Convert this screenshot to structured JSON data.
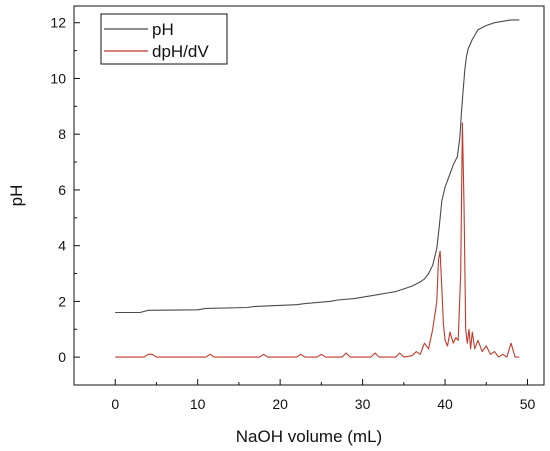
{
  "chart_data": {
    "type": "line",
    "xlabel": "NaOH volume (mL)",
    "ylabel": "pH",
    "xlim": [
      -5,
      52
    ],
    "ylim": [
      -1,
      12.6
    ],
    "x_ticks": [
      0,
      10,
      20,
      30,
      40,
      50
    ],
    "y_ticks": [
      0,
      2,
      4,
      6,
      8,
      10,
      12
    ],
    "grid": false,
    "legend": "top-left",
    "colors": {
      "pH": "#4a4a4a",
      "dpH/dV": "#c0392b",
      "axis": "#111111"
    },
    "series": [
      {
        "name": "pH",
        "x": [
          0,
          3,
          4,
          10,
          11,
          16,
          17,
          22,
          23,
          26,
          27,
          29,
          31,
          33,
          34,
          35,
          36,
          37,
          37.5,
          38,
          38.5,
          39,
          39.3,
          39.6,
          40,
          40.5,
          41,
          41.5,
          41.8,
          42,
          42.2,
          42.4,
          42.6,
          42.8,
          43,
          43.3,
          43.7,
          44,
          45,
          46,
          47,
          48,
          49
        ],
        "y": [
          1.6,
          1.6,
          1.68,
          1.7,
          1.75,
          1.78,
          1.82,
          1.88,
          1.92,
          2.0,
          2.05,
          2.1,
          2.2,
          2.3,
          2.35,
          2.45,
          2.55,
          2.7,
          2.8,
          3.0,
          3.3,
          3.9,
          4.7,
          5.6,
          6.1,
          6.5,
          6.9,
          7.2,
          7.9,
          8.8,
          9.6,
          10.3,
          10.8,
          11.05,
          11.2,
          11.4,
          11.6,
          11.75,
          11.9,
          12.0,
          12.05,
          12.1,
          12.1
        ]
      },
      {
        "name": "dpH/dV",
        "x": [
          0,
          3.5,
          4,
          4.5,
          5,
          11,
          11.5,
          12,
          17.5,
          18,
          18.5,
          22,
          22.5,
          23,
          24.5,
          25,
          25.5,
          27.5,
          28,
          28.5,
          31,
          31.5,
          32,
          34,
          34.5,
          35,
          36,
          36.5,
          37,
          37.5,
          38,
          38.5,
          39,
          39.2,
          39.4,
          39.6,
          39.8,
          40,
          40.3,
          40.6,
          41,
          41.3,
          41.6,
          41.9,
          42.1,
          42.3,
          42.5,
          42.7,
          42.9,
          43.1,
          43.3,
          43.6,
          44,
          44.5,
          45,
          45.5,
          46,
          46.5,
          47,
          47.5,
          48,
          48.2,
          48.5,
          49
        ],
        "y": [
          0,
          0,
          0.1,
          0.1,
          0,
          0,
          0.1,
          0,
          0,
          0.1,
          0,
          0,
          0.1,
          0,
          0,
          0.1,
          0,
          0,
          0.15,
          0,
          0,
          0.15,
          0,
          0,
          0.15,
          0,
          0.05,
          0.2,
          0.1,
          0.5,
          0.3,
          1.0,
          2.0,
          3.5,
          3.8,
          2.5,
          1.2,
          0.6,
          0.4,
          0.9,
          0.5,
          0.7,
          0.6,
          3.0,
          8.4,
          5.5,
          1.0,
          0.5,
          1.0,
          0.3,
          0.9,
          0.3,
          0.6,
          0.2,
          0.4,
          0.1,
          0.2,
          0,
          0.1,
          0,
          0.5,
          0.3,
          0,
          0
        ]
      }
    ]
  }
}
